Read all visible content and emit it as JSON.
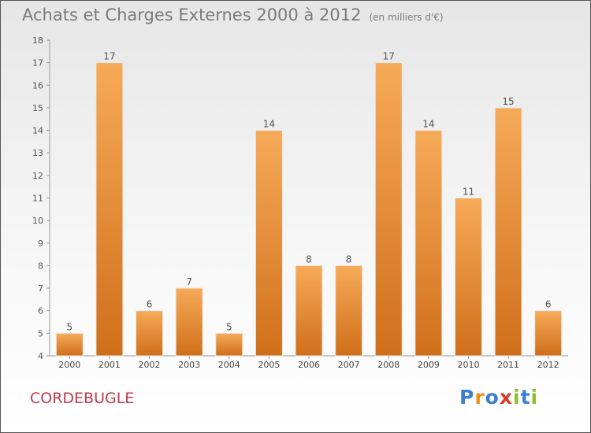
{
  "title": "Achats et Charges Externes 2000 à 2012",
  "unit": "(en milliers d'€)",
  "commune": "CORDEBUGLE",
  "logo": {
    "text": "Proxiti",
    "colors": [
      "#3a7fd0",
      "#e8921c",
      "#3a7fd0",
      "#d83c2a",
      "#8cbf2a",
      "#3a7fd0",
      "#8cbf2a"
    ]
  },
  "colors": {
    "bar_light": "#f6aa58",
    "bar_dark": "#d06f1a",
    "title": "#7a7a7a",
    "commune": "#c03a4c"
  },
  "chart_data": {
    "type": "bar",
    "title": "Achats et Charges Externes 2000 à 2012",
    "subtitle": "(en milliers d'€)",
    "categories": [
      "2000",
      "2001",
      "2002",
      "2003",
      "2004",
      "2005",
      "2006",
      "2007",
      "2008",
      "2009",
      "2010",
      "2011",
      "2012"
    ],
    "values": [
      5,
      17,
      6,
      7,
      5,
      14,
      8,
      8,
      17,
      14,
      11,
      15,
      6
    ],
    "ylim": [
      4,
      18
    ],
    "yticks": [
      4,
      5,
      6,
      7,
      8,
      9,
      10,
      11,
      12,
      13,
      14,
      15,
      16,
      17,
      18
    ],
    "grid": false,
    "legend": "none",
    "data_labels": true
  }
}
